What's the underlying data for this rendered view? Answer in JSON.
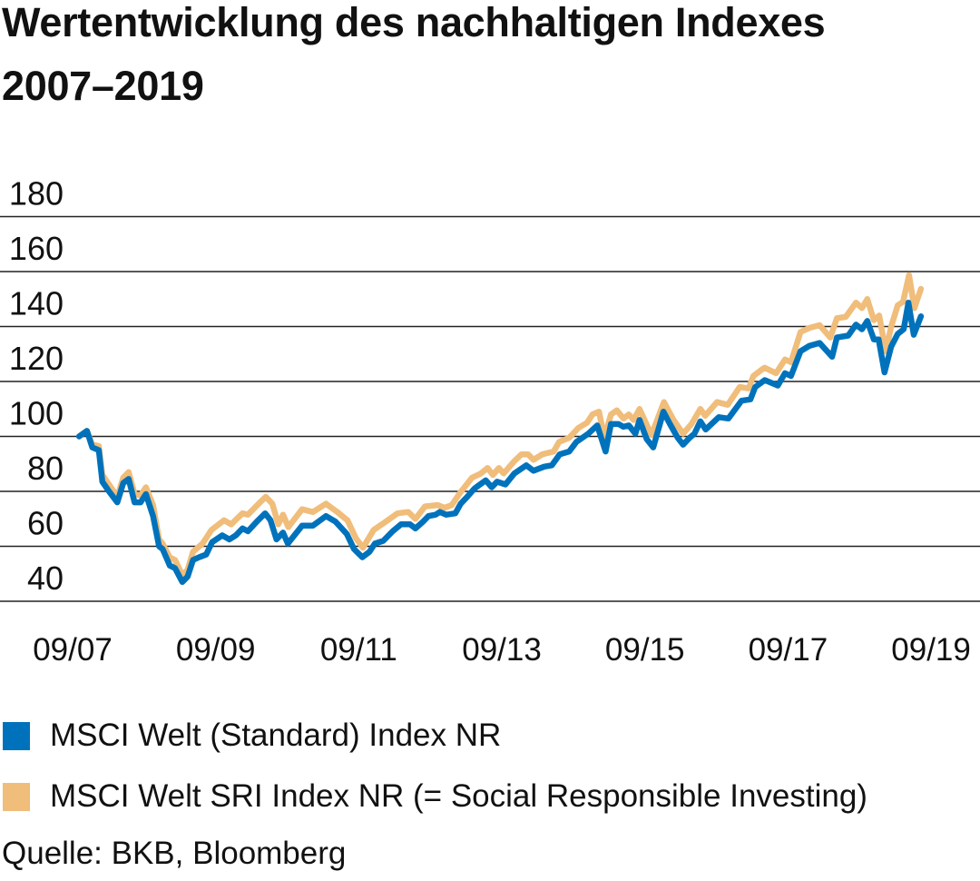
{
  "title_line1": "Wertentwicklung des nachhaltigen Indexes",
  "title_line2": "2007–2019",
  "source": "Quelle: BKB, Bloomberg",
  "chart_data": {
    "type": "line",
    "title": "Wertentwicklung des nachhaltigen Indexes 2007–2019",
    "xlabel": "",
    "ylabel": "",
    "x_unit": "months since 09/2007",
    "xlim": [
      0,
      144
    ],
    "ylim": [
      40,
      180
    ],
    "yticks": [
      180,
      160,
      140,
      120,
      100,
      80,
      60,
      40
    ],
    "xticks": [
      {
        "m": 0,
        "label": "09/07"
      },
      {
        "m": 24,
        "label": "09/09"
      },
      {
        "m": 48,
        "label": "09/11"
      },
      {
        "m": 72,
        "label": "09/13"
      },
      {
        "m": 96,
        "label": "09/15"
      },
      {
        "m": 120,
        "label": "09/17"
      },
      {
        "m": 144,
        "label": "09/19"
      }
    ],
    "grid": true,
    "legend_position": "bottom",
    "series": [
      {
        "name": "MSCI Welt SRI Index NR (= Social Responsible Investing)",
        "color": "#F0BD7A",
        "points": [
          [
            1.1,
            100
          ],
          [
            2.4,
            102
          ],
          [
            3.3,
            97
          ],
          [
            4.4,
            96.5
          ],
          [
            5.0,
            86
          ],
          [
            6.1,
            82.5
          ],
          [
            7.5,
            78
          ],
          [
            8.5,
            85
          ],
          [
            9.4,
            87
          ],
          [
            10.4,
            79
          ],
          [
            11.4,
            78.5
          ],
          [
            12.3,
            81.5
          ],
          [
            13.5,
            75
          ],
          [
            14.5,
            62.5
          ],
          [
            15.1,
            61
          ],
          [
            16.3,
            56
          ],
          [
            17.2,
            55
          ],
          [
            18.4,
            49.5
          ],
          [
            19.3,
            51.5
          ],
          [
            20.2,
            58
          ],
          [
            21.8,
            61
          ],
          [
            23.3,
            66
          ],
          [
            25.4,
            69.5
          ],
          [
            26.6,
            68
          ],
          [
            28.5,
            72
          ],
          [
            29.4,
            71.5
          ],
          [
            31.2,
            75.5
          ],
          [
            32.4,
            78
          ],
          [
            33.5,
            75.5
          ],
          [
            34.5,
            68
          ],
          [
            35.3,
            71.5
          ],
          [
            36.2,
            67
          ],
          [
            38.5,
            73.5
          ],
          [
            40.3,
            72.5
          ],
          [
            42.5,
            75.5
          ],
          [
            44.4,
            72.5
          ],
          [
            46.1,
            69.5
          ],
          [
            47.5,
            63
          ],
          [
            48.7,
            59.5
          ],
          [
            50.5,
            66
          ],
          [
            52.2,
            68.5
          ],
          [
            54.5,
            72
          ],
          [
            56.3,
            72.5
          ],
          [
            57.5,
            70
          ],
          [
            59.1,
            74.5
          ],
          [
            61.2,
            75
          ],
          [
            62.4,
            74
          ],
          [
            63.6,
            75
          ],
          [
            65.0,
            79.5
          ],
          [
            67.0,
            85
          ],
          [
            68.5,
            86.5
          ],
          [
            69.6,
            88.5
          ],
          [
            70.5,
            86
          ],
          [
            71.5,
            88.5
          ],
          [
            72.3,
            86.5
          ],
          [
            74.1,
            91
          ],
          [
            75.3,
            93.5
          ],
          [
            76.4,
            93.5
          ],
          [
            77.3,
            91.5
          ],
          [
            78.8,
            93.5
          ],
          [
            80.7,
            94.5
          ],
          [
            81.6,
            98
          ],
          [
            83.3,
            99.5
          ],
          [
            84.8,
            103
          ],
          [
            86.3,
            105
          ],
          [
            87.2,
            108
          ],
          [
            88.3,
            109
          ],
          [
            89.2,
            99.5
          ],
          [
            90.3,
            108
          ],
          [
            91.3,
            109.5
          ],
          [
            92.4,
            106.5
          ],
          [
            93.3,
            108
          ],
          [
            94.1,
            106
          ],
          [
            95.1,
            110
          ],
          [
            97.1,
            100.5
          ],
          [
            99.2,
            112.5
          ],
          [
            100.8,
            106
          ],
          [
            102.4,
            101
          ],
          [
            103.8,
            104.5
          ],
          [
            105.3,
            110
          ],
          [
            106.1,
            107.5
          ],
          [
            108.1,
            112.5
          ],
          [
            109.9,
            111.5
          ],
          [
            111.9,
            118
          ],
          [
            113.4,
            117.5
          ],
          [
            114.2,
            122
          ],
          [
            115.7,
            124.5
          ],
          [
            116.1,
            125
          ],
          [
            118.0,
            123
          ],
          [
            119.5,
            128
          ],
          [
            120.5,
            127
          ],
          [
            122.1,
            138
          ],
          [
            123.6,
            139.5
          ],
          [
            125.3,
            140.5
          ],
          [
            127.1,
            136
          ],
          [
            128.2,
            143
          ],
          [
            129.7,
            143.5
          ],
          [
            131.4,
            148.7
          ],
          [
            132.4,
            146.7
          ],
          [
            133.3,
            150
          ],
          [
            134.4,
            142.3
          ],
          [
            135.3,
            144
          ],
          [
            136.4,
            131
          ],
          [
            137.3,
            140
          ],
          [
            138.4,
            147.7
          ],
          [
            139.3,
            149
          ],
          [
            140.3,
            158.7
          ],
          [
            141.2,
            146.7
          ],
          [
            142.3,
            153.7
          ]
        ]
      },
      {
        "name": "MSCI Welt (Standard) Index NR",
        "color": "#0072BC",
        "points": [
          [
            1.1,
            100
          ],
          [
            2.4,
            102
          ],
          [
            3.3,
            96
          ],
          [
            4.4,
            95
          ],
          [
            5.0,
            83.5
          ],
          [
            6.1,
            80
          ],
          [
            7.5,
            76
          ],
          [
            8.5,
            83
          ],
          [
            9.4,
            84.5
          ],
          [
            10.4,
            76
          ],
          [
            11.4,
            76
          ],
          [
            12.3,
            79
          ],
          [
            13.5,
            71
          ],
          [
            14.5,
            60
          ],
          [
            15.1,
            59
          ],
          [
            16.3,
            53
          ],
          [
            17.2,
            52
          ],
          [
            18.4,
            47
          ],
          [
            19.3,
            49
          ],
          [
            20.2,
            55
          ],
          [
            21.2,
            56
          ],
          [
            22.4,
            57
          ],
          [
            23.4,
            61.5
          ],
          [
            25.1,
            64
          ],
          [
            26.3,
            62.5
          ],
          [
            27.4,
            64
          ],
          [
            28.5,
            66.5
          ],
          [
            29.4,
            65.5
          ],
          [
            30.9,
            69
          ],
          [
            32.3,
            72
          ],
          [
            33.2,
            69.5
          ],
          [
            34.2,
            62.5
          ],
          [
            35.3,
            65
          ],
          [
            36.1,
            61
          ],
          [
            38.5,
            67.5
          ],
          [
            40.3,
            67.5
          ],
          [
            42.5,
            71
          ],
          [
            44.1,
            69
          ],
          [
            46.0,
            64.5
          ],
          [
            47.2,
            59
          ],
          [
            48.6,
            56
          ],
          [
            49.8,
            58
          ],
          [
            50.7,
            61
          ],
          [
            52.1,
            62
          ],
          [
            53.7,
            65.5
          ],
          [
            55.1,
            68
          ],
          [
            56.6,
            68
          ],
          [
            57.5,
            66.5
          ],
          [
            58.8,
            69
          ],
          [
            59.7,
            71
          ],
          [
            60.9,
            71.5
          ],
          [
            61.6,
            72.5
          ],
          [
            62.7,
            71.5
          ],
          [
            64.2,
            72
          ],
          [
            65.1,
            75.5
          ],
          [
            66.2,
            78
          ],
          [
            67.4,
            81
          ],
          [
            68.0,
            82
          ],
          [
            69.3,
            84
          ],
          [
            70.3,
            81.5
          ],
          [
            71.2,
            83.5
          ],
          [
            72.6,
            82.5
          ],
          [
            74.1,
            86.5
          ],
          [
            76.1,
            89.5
          ],
          [
            77.3,
            87.5
          ],
          [
            79.1,
            89
          ],
          [
            80.4,
            89.5
          ],
          [
            81.7,
            93.5
          ],
          [
            83.3,
            94.5
          ],
          [
            84.5,
            98
          ],
          [
            86.5,
            101
          ],
          [
            88.0,
            104
          ],
          [
            89.4,
            94.5
          ],
          [
            90.3,
            104.5
          ],
          [
            91.6,
            104.5
          ],
          [
            92.4,
            103.5
          ],
          [
            93.3,
            104
          ],
          [
            94.4,
            101
          ],
          [
            95.1,
            106
          ],
          [
            96.3,
            99
          ],
          [
            97.4,
            96
          ],
          [
            99.1,
            109
          ],
          [
            100.2,
            104.5
          ],
          [
            101.5,
            99.5
          ],
          [
            102.4,
            97
          ],
          [
            103.5,
            99.5
          ],
          [
            104.3,
            101
          ],
          [
            105.3,
            105.5
          ],
          [
            106.2,
            102.5
          ],
          [
            108.4,
            107
          ],
          [
            110.0,
            106.5
          ],
          [
            112.2,
            113
          ],
          [
            113.7,
            113.5
          ],
          [
            114.5,
            118
          ],
          [
            116.1,
            120.5
          ],
          [
            118.3,
            118.5
          ],
          [
            119.5,
            123
          ],
          [
            120.5,
            122
          ],
          [
            122.1,
            131
          ],
          [
            123.6,
            133
          ],
          [
            125.3,
            134
          ],
          [
            127.4,
            129
          ],
          [
            128.2,
            136
          ],
          [
            130.1,
            136.7
          ],
          [
            131.4,
            140.7
          ],
          [
            132.4,
            139
          ],
          [
            133.3,
            142
          ],
          [
            134.4,
            135.3
          ],
          [
            135.2,
            135.3
          ],
          [
            136.2,
            123.3
          ],
          [
            137.3,
            132.7
          ],
          [
            138.4,
            137.3
          ],
          [
            139.4,
            139
          ],
          [
            140.2,
            148.7
          ],
          [
            141.1,
            137
          ],
          [
            142.3,
            143.7
          ]
        ]
      }
    ]
  },
  "legend": [
    {
      "label": "MSCI Welt (Standard) Index NR",
      "color": "#0072BC"
    },
    {
      "label": "MSCI Welt SRI Index NR (= Social Responsible Investing)",
      "color": "#F0BD7A"
    }
  ]
}
